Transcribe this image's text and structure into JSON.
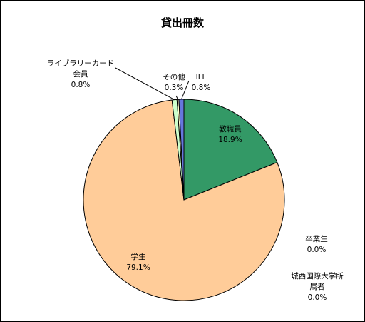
{
  "chart_data": {
    "type": "pie",
    "title": "貸出冊数",
    "start": "12 o'clock, clockwise",
    "legend": "none (slice labels)",
    "slices": [
      {
        "name": "教職員",
        "value": 18.9,
        "display": "18.9%",
        "color": "#339966"
      },
      {
        "name": "卒業生",
        "value": 0.0,
        "display": "0.0%",
        "color": "#993366"
      },
      {
        "name": "城西国際大学所属者",
        "name_display": [
          "城西国際大学所",
          "属者"
        ],
        "value": 0.0,
        "display": "0.0%",
        "color": "#cc99ff"
      },
      {
        "name": "学生",
        "value": 79.1,
        "display": "79.1%",
        "color": "#ffcc99"
      },
      {
        "name": "ライブラリーカード会員",
        "name_display": [
          "ライブラリーカード",
          "会員"
        ],
        "value": 0.8,
        "display": "0.8%",
        "color": "#ccffcc"
      },
      {
        "name": "その他",
        "value": 0.3,
        "display": "0.3%",
        "color": "#ffffcc"
      },
      {
        "name": "ILL",
        "value": 0.8,
        "display": "0.8%",
        "color": "#6677dd"
      }
    ]
  }
}
